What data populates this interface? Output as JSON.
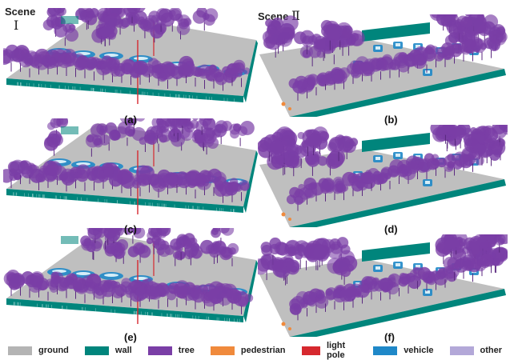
{
  "colors": {
    "ground": "#b4b4b4",
    "wall": "#00857c",
    "tree": "#7a3ea6",
    "pedestrian": "#f08a3c",
    "light_pole": "#d6282e",
    "vehicle": "#1f88c8",
    "other": "#b3a8d8"
  },
  "scenes": [
    {
      "title": "Scene",
      "numeral": "Ⅰ"
    },
    {
      "title": "Scene",
      "numeral": "Ⅱ"
    }
  ],
  "panels": [
    {
      "label": "(a)",
      "scene": 1
    },
    {
      "label": "(b)",
      "scene": 2
    },
    {
      "label": "(c)",
      "scene": 1
    },
    {
      "label": "(d)",
      "scene": 2
    },
    {
      "label": "(e)",
      "scene": 1
    },
    {
      "label": "(f)",
      "scene": 2
    }
  ],
  "legend": [
    {
      "label": "ground",
      "color": "#b4b4b4"
    },
    {
      "label": "wall",
      "color": "#00857c"
    },
    {
      "label": "tree",
      "color": "#7a3ea6"
    },
    {
      "label": "pedestrian",
      "color": "#f08a3c"
    },
    {
      "label": "light pole",
      "color": "#d6282e"
    },
    {
      "label": "vehicle",
      "color": "#1f88c8"
    },
    {
      "label": "other",
      "color": "#b3a8d8"
    }
  ]
}
